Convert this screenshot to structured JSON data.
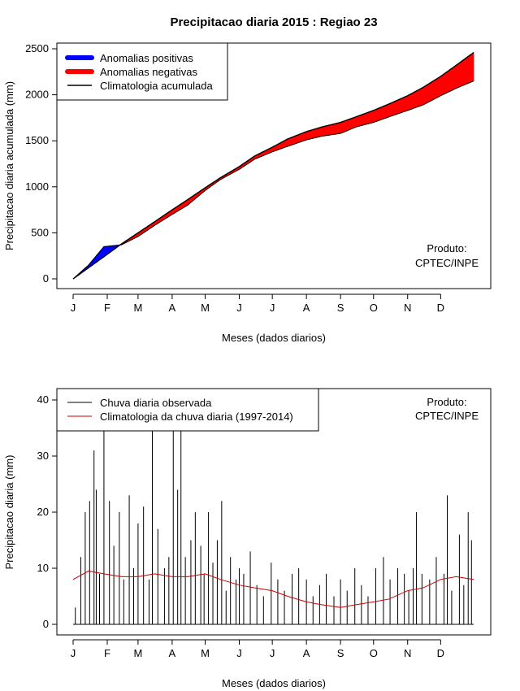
{
  "figure_title": "Precipitacao diaria 2015 : Regiao 23",
  "chart_data": [
    {
      "type": "area",
      "title": "Precipitacao diaria 2015 : Regiao 23",
      "xlabel": "Meses (dados diarios)",
      "ylabel": "Precipitacao diaria acumulada (mm)",
      "x_tick_labels": [
        "J",
        "F",
        "M",
        "A",
        "M",
        "J",
        "J",
        "A",
        "S",
        "O",
        "N",
        "D"
      ],
      "xlim_days": [
        1,
        365
      ],
      "ylim": [
        0,
        2500
      ],
      "y_ticks": [
        0,
        500,
        1000,
        1500,
        2000,
        2500
      ],
      "legend": [
        {
          "label": "Anomalias positivas",
          "color": "#0000ff"
        },
        {
          "label": "Anomalias negativas",
          "color": "#ff0000"
        },
        {
          "label": "Climatologia acumulada",
          "color": "#000000"
        }
      ],
      "annotation": [
        "Produto:",
        "CPTEC/INPE"
      ],
      "series": [
        {
          "name": "Climatologia acumulada",
          "day": [
            1,
            15,
            29,
            45,
            60,
            75,
            91,
            105,
            121,
            135,
            152,
            166,
            182,
            196,
            213,
            227,
            244,
            258,
            274,
            288,
            305,
            319,
            335,
            349,
            365
          ],
          "values": [
            0,
            120,
            240,
            380,
            500,
            620,
            750,
            860,
            990,
            1100,
            1220,
            1335,
            1430,
            1520,
            1600,
            1650,
            1700,
            1760,
            1830,
            1900,
            1990,
            2080,
            2200,
            2320,
            2460
          ]
        },
        {
          "name": "Observada acumulada",
          "day": [
            1,
            15,
            29,
            45,
            60,
            75,
            91,
            105,
            121,
            135,
            152,
            166,
            182,
            196,
            213,
            227,
            244,
            258,
            274,
            288,
            305,
            319,
            335,
            349,
            365
          ],
          "values": [
            0,
            150,
            350,
            370,
            460,
            580,
            700,
            800,
            960,
            1080,
            1190,
            1300,
            1380,
            1440,
            1510,
            1550,
            1580,
            1650,
            1700,
            1760,
            1830,
            1890,
            1990,
            2070,
            2150
          ]
        }
      ]
    },
    {
      "type": "bar",
      "xlabel": "Meses (dados diarios)",
      "ylabel": "Precipitacao diaria (mm)",
      "x_tick_labels": [
        "J",
        "F",
        "M",
        "A",
        "M",
        "J",
        "J",
        "A",
        "S",
        "O",
        "N",
        "D"
      ],
      "xlim_days": [
        1,
        365
      ],
      "ylim": [
        0,
        40
      ],
      "y_ticks": [
        0,
        10,
        20,
        30,
        40
      ],
      "legend": [
        {
          "label": "Chuva diaria observada",
          "color": "#000000"
        },
        {
          "label": "Climatologia da chuva diaria (1997-2014)",
          "color": "#cc0000"
        }
      ],
      "annotation": [
        "Produto:",
        "CPTEC/INPE"
      ],
      "observed_daily": {
        "day": [
          3,
          8,
          12,
          16,
          20,
          22,
          25,
          29,
          34,
          38,
          43,
          47,
          52,
          56,
          60,
          65,
          70,
          73,
          78,
          84,
          88,
          92,
          96,
          99,
          103,
          108,
          112,
          117,
          120,
          124,
          128,
          132,
          136,
          140,
          144,
          149,
          152,
          156,
          162,
          168,
          174,
          181,
          187,
          193,
          200,
          206,
          213,
          219,
          225,
          231,
          238,
          244,
          250,
          257,
          263,
          269,
          276,
          283,
          289,
          296,
          302,
          306,
          310,
          313,
          318,
          325,
          331,
          338,
          341,
          345,
          352,
          356,
          360,
          363
        ],
        "values": [
          3,
          12,
          20,
          22,
          31,
          24,
          9,
          40,
          22,
          14,
          20,
          8,
          23,
          10,
          18,
          21,
          8,
          40,
          17,
          10,
          12,
          40,
          24,
          40,
          12,
          15,
          20,
          14,
          9,
          20,
          11,
          15,
          22,
          6,
          12,
          8,
          10,
          9,
          13,
          7,
          5,
          11,
          8,
          6,
          9,
          10,
          8,
          5,
          7,
          9,
          5,
          8,
          6,
          10,
          7,
          5,
          10,
          12,
          8,
          10,
          9,
          6,
          10,
          20,
          9,
          8,
          12,
          9,
          23,
          6,
          16,
          7,
          20,
          15
        ]
      },
      "climatology_daily": {
        "day": [
          1,
          15,
          29,
          45,
          60,
          75,
          91,
          105,
          121,
          135,
          152,
          166,
          182,
          196,
          213,
          227,
          244,
          258,
          274,
          288,
          305,
          319,
          335,
          349,
          365
        ],
        "values": [
          8,
          9.5,
          9,
          8.5,
          8.5,
          9,
          8.5,
          8.5,
          9,
          8,
          7,
          6.5,
          6,
          5,
          4,
          3.5,
          3,
          3.5,
          4,
          4.5,
          6,
          6.5,
          8,
          8.5,
          8
        ]
      }
    }
  ]
}
